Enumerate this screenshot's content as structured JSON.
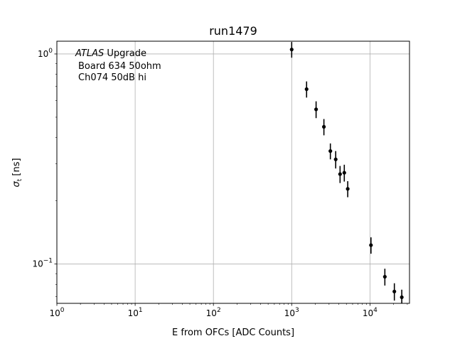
{
  "chart_data": {
    "type": "scatter",
    "title": "run1479",
    "xlabel": "E from OFCs [ADC Counts]",
    "ylabel": "σ_t [ns]",
    "xscale": "log",
    "yscale": "log",
    "xlim": [
      1,
      32000
    ],
    "ylim": [
      0.065,
      1.15
    ],
    "grid": true,
    "x_tick_labels": [
      {
        "base": "10",
        "exp": "0"
      },
      {
        "base": "10",
        "exp": "1"
      },
      {
        "base": "10",
        "exp": "2"
      },
      {
        "base": "10",
        "exp": "3"
      },
      {
        "base": "10",
        "exp": "4"
      }
    ],
    "y_tick_labels": [
      {
        "base": "10",
        "exp": "0"
      },
      {
        "base": "10",
        "exp": "−1"
      }
    ],
    "annotation": {
      "line1_italic": "ATLAS",
      "line1_rest": " Upgrade",
      "line2": "Board 634 50ohm",
      "line3": "Ch074 50dB hi"
    },
    "points": [
      {
        "x": 1000,
        "y": 1.05,
        "err": 0.09
      },
      {
        "x": 1550,
        "y": 0.68,
        "err": 0.06
      },
      {
        "x": 2050,
        "y": 0.545,
        "err": 0.05
      },
      {
        "x": 2580,
        "y": 0.45,
        "err": 0.04
      },
      {
        "x": 3120,
        "y": 0.345,
        "err": 0.03
      },
      {
        "x": 3650,
        "y": 0.315,
        "err": 0.03
      },
      {
        "x": 4150,
        "y": 0.268,
        "err": 0.025
      },
      {
        "x": 4700,
        "y": 0.272,
        "err": 0.025
      },
      {
        "x": 5200,
        "y": 0.228,
        "err": 0.02
      },
      {
        "x": 10300,
        "y": 0.123,
        "err": 0.011
      },
      {
        "x": 15500,
        "y": 0.087,
        "err": 0.008
      },
      {
        "x": 20500,
        "y": 0.074,
        "err": 0.007
      },
      {
        "x": 25500,
        "y": 0.0695,
        "err": 0.006
      }
    ]
  }
}
